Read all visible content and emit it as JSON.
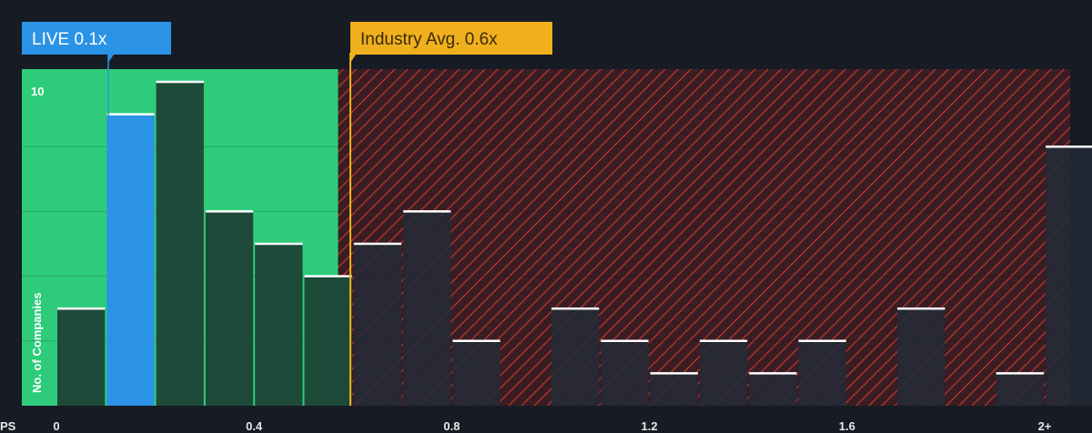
{
  "chart_data": {
    "type": "bar",
    "title": "",
    "xlabel": "PS",
    "ylabel": "No. of Companies",
    "x_tick_labels": [
      "0",
      "0.4",
      "0.8",
      "1.2",
      "1.6",
      "2+"
    ],
    "x_tick_values": [
      0,
      0.4,
      0.8,
      1.2,
      1.6,
      2.0
    ],
    "y_tick_labels": [
      "10"
    ],
    "y_tick_values": [
      10
    ],
    "xlim": [
      -0.08,
      2.08
    ],
    "ylim": [
      0,
      10.3
    ],
    "grid": true,
    "bars": [
      {
        "x0": 0.0,
        "x1": 0.1,
        "value": 3,
        "highlight": false
      },
      {
        "x0": 0.1,
        "x1": 0.2,
        "value": 9,
        "highlight": true
      },
      {
        "x0": 0.2,
        "x1": 0.3,
        "value": 10,
        "highlight": false
      },
      {
        "x0": 0.3,
        "x1": 0.4,
        "value": 6,
        "highlight": false
      },
      {
        "x0": 0.4,
        "x1": 0.5,
        "value": 5,
        "highlight": false
      },
      {
        "x0": 0.5,
        "x1": 0.6,
        "value": 4,
        "highlight": false
      },
      {
        "x0": 0.6,
        "x1": 0.7,
        "value": 5,
        "highlight": false
      },
      {
        "x0": 0.7,
        "x1": 0.8,
        "value": 6,
        "highlight": false
      },
      {
        "x0": 0.8,
        "x1": 0.9,
        "value": 2,
        "highlight": false
      },
      {
        "x0": 1.0,
        "x1": 1.1,
        "value": 3,
        "highlight": false
      },
      {
        "x0": 1.1,
        "x1": 1.2,
        "value": 2,
        "highlight": false
      },
      {
        "x0": 1.2,
        "x1": 1.3,
        "value": 1,
        "highlight": false
      },
      {
        "x0": 1.3,
        "x1": 1.4,
        "value": 2,
        "highlight": false
      },
      {
        "x0": 1.4,
        "x1": 1.5,
        "value": 1,
        "highlight": false
      },
      {
        "x0": 1.5,
        "x1": 1.6,
        "value": 2,
        "highlight": false
      },
      {
        "x0": 1.7,
        "x1": 1.8,
        "value": 3,
        "highlight": false
      },
      {
        "x0": 1.9,
        "x1": 2.0,
        "value": 1,
        "highlight": false
      },
      {
        "x0": 2.0,
        "x1": 2.1,
        "value": 8,
        "highlight": false
      }
    ],
    "fair_zone_end": 0.57,
    "company_marker": {
      "label": "LIVE 0.1x",
      "value": 0.1
    },
    "industry_marker": {
      "label": "Industry Avg. 0.6x",
      "value": 0.6
    },
    "colors": {
      "background": "#161b24",
      "fair_zone": "#2ecc7a",
      "bar": "#1e4a3a",
      "bar_highlight": "#2b93e5",
      "bar_dark": "#232a35",
      "hatch_bg": "#3a1d24",
      "hatch_line": "#c0392b",
      "company": "#2b93e5",
      "industry": "#f0b01d",
      "cap": "#ffffff"
    }
  }
}
